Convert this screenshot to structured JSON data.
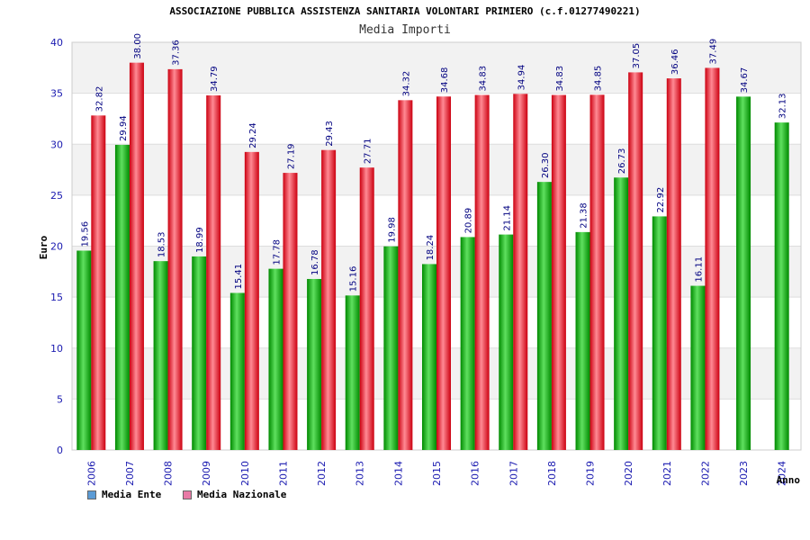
{
  "header": {
    "title": "ASSOCIAZIONE PUBBLICA ASSISTENZA SANITARIA VOLONTARI PRIMIERO (c.f.01277490221)",
    "subtitle": "Media Importi"
  },
  "legend": {
    "ente_label": "Media Ente",
    "nazionale_label": "Media Nazionale",
    "ente_color": "#5b9bd5",
    "nazionale_color": "#e87aa6"
  },
  "colors": {
    "green_dark": "#008a00",
    "green_light": "#5fe05f",
    "red_dark": "#cc0010",
    "red_light": "#ff8a94",
    "tick_text": "#1a1ab0",
    "label_text": "#000080",
    "band": "#f2f2f2"
  },
  "chart_data": {
    "type": "bar",
    "title": "Media Importi",
    "xlabel": "Anno",
    "ylabel": "Euro",
    "ylim": [
      0,
      40
    ],
    "yticks": [
      0,
      5,
      10,
      15,
      20,
      25,
      30,
      35,
      40
    ],
    "categories": [
      "2006",
      "2007",
      "2008",
      "2009",
      "2010",
      "2011",
      "2012",
      "2013",
      "2014",
      "2015",
      "2016",
      "2017",
      "2018",
      "2019",
      "2020",
      "2021",
      "2022",
      "2023",
      "2024"
    ],
    "series": [
      {
        "name": "Media Ente",
        "values": [
          19.56,
          29.94,
          18.53,
          18.99,
          15.41,
          17.78,
          16.78,
          15.16,
          19.98,
          18.24,
          20.89,
          21.14,
          26.3,
          21.38,
          26.73,
          22.92,
          16.11,
          34.67,
          32.13
        ],
        "labels": [
          "19.56",
          "29.94",
          "18.53",
          "18.99",
          "15.41",
          "17.78",
          "16.78",
          "15.16",
          "19.98",
          "18.24",
          "20.89",
          "21.14",
          "26.30",
          "21.38",
          "26.73",
          "22.92",
          "16.11",
          "34.67",
          "32.13"
        ]
      },
      {
        "name": "Media Nazionale",
        "values": [
          32.82,
          38.0,
          37.36,
          34.79,
          29.24,
          27.19,
          29.43,
          27.71,
          34.32,
          34.68,
          34.83,
          34.94,
          34.83,
          34.85,
          37.05,
          36.46,
          37.49,
          null,
          null
        ],
        "labels": [
          "32.82",
          "38.00",
          "37.36",
          "34.79",
          "29.24",
          "27.19",
          "29.43",
          "27.71",
          "34.32",
          "34.68",
          "34.83",
          "34.94",
          "34.83",
          "34.85",
          "37.05",
          "36.46",
          "37.49",
          "",
          ""
        ]
      }
    ]
  }
}
